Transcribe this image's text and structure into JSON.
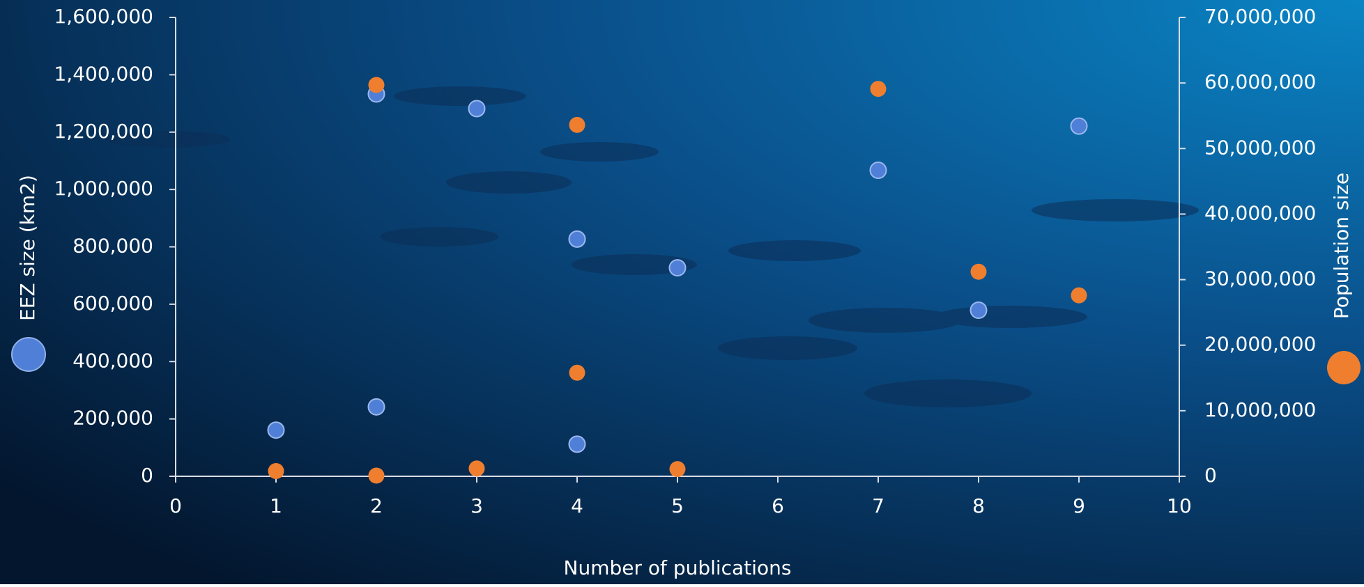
{
  "chart_data": {
    "type": "scatter",
    "x_label": "Number of publications",
    "y_label": "EEZ size (km2)",
    "y2_label": "Population size",
    "xlim": [
      0,
      10
    ],
    "xticks": [
      0,
      1,
      2,
      3,
      4,
      5,
      6,
      7,
      8,
      9,
      10
    ],
    "ylim": [
      0,
      1600000
    ],
    "yticks": [
      0,
      {
        "value": 200000,
        "label": "200,000"
      },
      {
        "value": 400000,
        "label": "400,000"
      },
      {
        "value": 600000,
        "label": "600,000"
      },
      {
        "value": 800000,
        "label": "800,000"
      },
      {
        "value": 1000000,
        "label": "1,000,000"
      },
      {
        "value": 1200000,
        "label": "1,200,000"
      },
      {
        "value": 1400000,
        "label": "1,400,000"
      },
      {
        "value": 1600000,
        "label": "1,600,000"
      }
    ],
    "y2lim": [
      0,
      70000000
    ],
    "y2ticks": [
      0,
      {
        "value": 10000000,
        "label": "10,000,000"
      },
      {
        "value": 20000000,
        "label": "20,000,000"
      },
      {
        "value": 30000000,
        "label": "30,000,000"
      },
      {
        "value": 40000000,
        "label": "40,000,000"
      },
      {
        "value": 50000000,
        "label": "50,000,000"
      },
      {
        "value": 60000000,
        "label": "60,000,000"
      },
      {
        "value": 70000000,
        "label": "70,000,000"
      }
    ],
    "grid": false,
    "series": [
      {
        "color": "#4f7fd6",
        "axis": "y",
        "x": [
          1,
          2,
          2,
          3,
          4,
          4,
          5,
          7,
          8,
          9
        ],
        "values": [
          161000,
          1333000,
          242000,
          1282000,
          827000,
          112000,
          727000,
          1067000,
          579000,
          1221000
        ]
      },
      {
        "color": "#ef7f2e",
        "axis": "y2",
        "x": [
          1,
          2,
          2,
          3,
          4,
          4,
          5,
          7,
          8,
          9
        ],
        "values": [
          800000,
          59700000,
          100000,
          1200000,
          53600000,
          15800000,
          1100000,
          59100000,
          31200000,
          27600000
        ]
      }
    ]
  }
}
